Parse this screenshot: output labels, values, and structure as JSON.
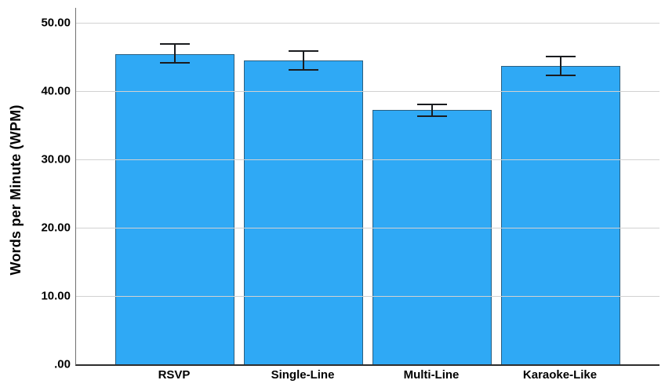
{
  "chart_data": {
    "type": "bar",
    "title": "",
    "xlabel": "",
    "ylabel": "Words per Minute (WPM)",
    "categories": [
      "RSVP",
      "Single-Line",
      "Multi-Line",
      "Karaoke-Like"
    ],
    "values": [
      45.4,
      44.5,
      37.3,
      43.7
    ],
    "error_low": [
      44.0,
      43.0,
      36.2,
      42.2
    ],
    "error_high": [
      47.0,
      46.0,
      38.2,
      45.2
    ],
    "ylim": [
      0,
      52.2
    ],
    "yticks": [
      {
        "value": 0,
        "label": ".00"
      },
      {
        "value": 10,
        "label": "10.00"
      },
      {
        "value": 20,
        "label": "20.00"
      },
      {
        "value": 30,
        "label": "30.00"
      },
      {
        "value": 40,
        "label": "40.00"
      },
      {
        "value": 50,
        "label": "50.00"
      }
    ],
    "grid": true,
    "legend": "none",
    "colors": {
      "bar_fill": "#2FA9F5",
      "bar_border": "#2B5F80",
      "error_bar": "#1A1C1F",
      "gridline": "#D2D2D2",
      "x_axis": "#2E2E2E",
      "y_axis": "#707070",
      "text": "#000000",
      "background": "#FFFFFF"
    }
  }
}
